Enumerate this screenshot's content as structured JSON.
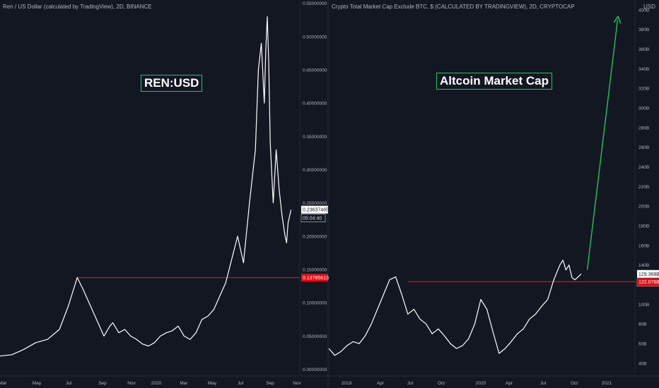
{
  "colors": {
    "background": "#131722",
    "price_line": "#ffffff",
    "level_line": "#e50914",
    "projection_arrow": "#22c55e",
    "axis_text": "#b2b5be",
    "divider": "#2a2e39"
  },
  "chart_data": [
    {
      "type": "line",
      "title": "Ren / US Dollar (calculated by TradingView), 2D, BINANCE",
      "annotation": "REN:USD",
      "x_tick_labels": [
        "Mar",
        "May",
        "Jul",
        "Sep",
        "Nov",
        "2020",
        "Mar",
        "May",
        "Jul",
        "Sep",
        "Nov"
      ],
      "y_tick_labels": [
        "0.55000000",
        "0.50000000",
        "0.45000000",
        "0.40000000",
        "0.35000000",
        "0.30000000",
        "0.25000000",
        "0.20000000",
        "0.15000000",
        "0.10000000",
        "0.05000000",
        "0.00000000"
      ],
      "ylim": [
        -0.01,
        0.555
      ],
      "x_range": [
        0,
        100
      ],
      "series": [
        {
          "x": [
            0,
            4,
            8,
            12,
            16,
            20,
            23,
            26,
            28,
            30,
            32,
            34,
            35,
            37,
            38,
            40,
            42,
            44,
            46,
            48,
            50,
            52,
            54,
            56,
            58,
            60,
            62,
            64,
            66,
            68,
            70,
            72,
            74,
            76,
            78,
            80,
            82,
            84,
            86,
            87,
            88,
            89,
            89.5,
            90,
            90.5,
            91,
            92,
            93,
            94,
            95,
            96,
            96.5,
            97,
            98
          ],
          "y": [
            0.02,
            0.022,
            0.03,
            0.04,
            0.045,
            0.06,
            0.095,
            0.138,
            0.12,
            0.1,
            0.08,
            0.06,
            0.05,
            0.065,
            0.07,
            0.055,
            0.06,
            0.05,
            0.045,
            0.038,
            0.035,
            0.04,
            0.05,
            0.055,
            0.058,
            0.065,
            0.05,
            0.045,
            0.055,
            0.075,
            0.08,
            0.09,
            0.11,
            0.13,
            0.165,
            0.2,
            0.16,
            0.25,
            0.33,
            0.45,
            0.49,
            0.4,
            0.48,
            0.53,
            0.46,
            0.34,
            0.25,
            0.33,
            0.27,
            0.23,
            0.2,
            0.19,
            0.22,
            0.24
          ]
        }
      ],
      "level_line": {
        "y": 0.13785613
      },
      "price_label": "0.23637465",
      "countdown_label": "05:04:40",
      "level_label": "0.13785613"
    },
    {
      "type": "line",
      "title": "Crypto Total Market Cap Exclude BTC, $ (CALCULATED BY TRADINGVIEW), 2D, CRYPTOCAP",
      "annotation": "Altcoin Market Cap",
      "currency_label": "USD",
      "x_tick_labels": [
        "2019",
        "Apr",
        "Jul",
        "Oct",
        "2020",
        "Apr",
        "Jul",
        "Oct",
        "2021"
      ],
      "y_tick_labels": [
        "400B",
        "380B",
        "360B",
        "340B",
        "320B",
        "300B",
        "280B",
        "260B",
        "240B",
        "220B",
        "200B",
        "180B",
        "160B",
        "140B",
        "100B",
        "80B",
        "60B",
        "40B"
      ],
      "ylim": [
        27,
        410
      ],
      "x_range": [
        0,
        100
      ],
      "series": [
        {
          "x": [
            0,
            2,
            4,
            6,
            8,
            10,
            12,
            14,
            16,
            18,
            20,
            22,
            24,
            26,
            28,
            30,
            32,
            34,
            36,
            38,
            40,
            42,
            44,
            46,
            48,
            50,
            52,
            54,
            56,
            58,
            60,
            62,
            64,
            66,
            68,
            70,
            72,
            74,
            76,
            77,
            78,
            79,
            80,
            81,
            82,
            83
          ],
          "y": [
            55,
            48,
            52,
            58,
            62,
            60,
            68,
            80,
            95,
            110,
            125,
            128,
            110,
            90,
            95,
            85,
            80,
            70,
            75,
            68,
            60,
            55,
            58,
            65,
            80,
            105,
            95,
            72,
            50,
            55,
            62,
            70,
            75,
            85,
            90,
            98,
            105,
            125,
            140,
            145,
            135,
            140,
            127,
            125,
            128,
            131
          ]
        }
      ],
      "level_line": {
        "y": 123
      },
      "projection_arrow": {
        "from": [
          85,
          135
        ],
        "to": [
          95,
          390
        ]
      },
      "price_label": "129.368B",
      "countdown_label": "05:04:40",
      "level_label": "122.076B"
    }
  ]
}
